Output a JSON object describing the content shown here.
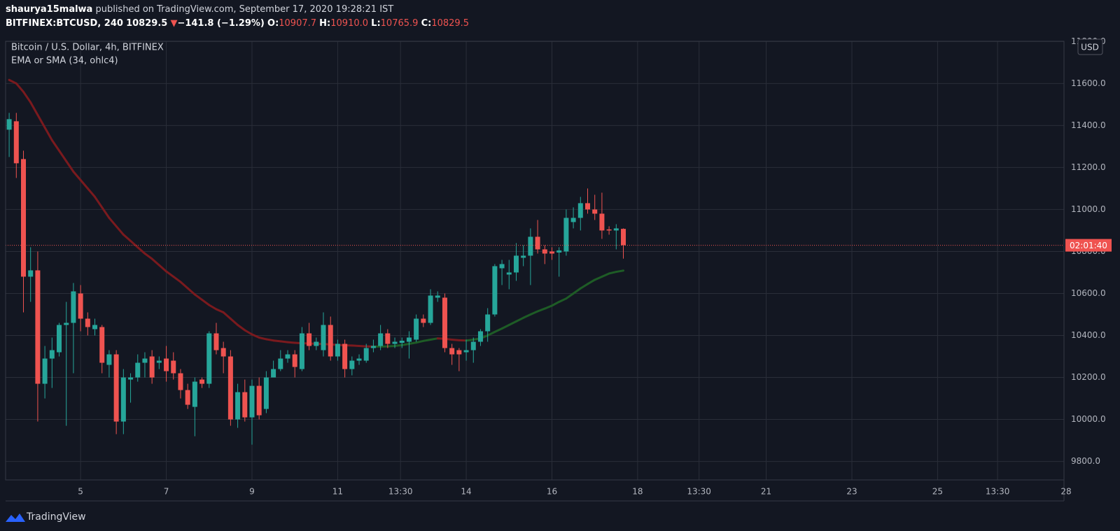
{
  "header": {
    "author": "shaurya15malwa",
    "published": "published on TradingView.com, September 17, 2020 19:28:21 IST",
    "symbol": "BITFINEX:BTCUSD, 240",
    "last": "10829.5",
    "arrow": "▼",
    "change": "−141.8 (−1.29%)",
    "o_label": "O:",
    "o_value": "10907.7",
    "h_label": "H:",
    "h_value": "10910.0",
    "l_label": "L:",
    "l_value": "10765.9",
    "c_label": "C:",
    "c_value": "10829.5"
  },
  "footer": {
    "brand": "TradingView"
  },
  "chart_data": {
    "type": "candlestick",
    "title": "Bitcoin / U.S. Dollar, 4h, BITFINEX",
    "indicator": "EMA or SMA (34, ohlc4)",
    "currency": "USD",
    "countdown": "02:01:40",
    "up_color": "#26a69a",
    "down_color": "#ef5350",
    "ma_up_color": "#1e5c26",
    "ma_down_color": "#7a1a1e",
    "grid": true,
    "xlim": [
      -0.5,
      147.7
    ],
    "xticks": [
      {
        "value": 10,
        "label": "5"
      },
      {
        "value": 22,
        "label": "7"
      },
      {
        "value": 34,
        "label": "9"
      },
      {
        "value": 46,
        "label": "11"
      },
      {
        "value": 54.8,
        "label": "13:30"
      },
      {
        "value": 64,
        "label": "14"
      },
      {
        "value": 76,
        "label": "16"
      },
      {
        "value": 88,
        "label": "18"
      },
      {
        "value": 96.6,
        "label": "13:30"
      },
      {
        "value": 106,
        "label": "21"
      },
      {
        "value": 118,
        "label": "23"
      },
      {
        "value": 130,
        "label": "25"
      },
      {
        "value": 138.4,
        "label": "13:30"
      },
      {
        "value": 148,
        "label": "28"
      }
    ],
    "ylim": [
      9712,
      11801
    ],
    "yticks": [
      {
        "value": 9800,
        "label": "9800.0"
      },
      {
        "value": 10000,
        "label": "10000.0"
      },
      {
        "value": 10200,
        "label": "10200.0"
      },
      {
        "value": 10400,
        "label": "10400.0"
      },
      {
        "value": 10600,
        "label": "10600.0"
      },
      {
        "value": 10800,
        "label": "10800.0"
      },
      {
        "value": 11000,
        "label": "11000.0"
      },
      {
        "value": 11200,
        "label": "11200.0"
      },
      {
        "value": 11400,
        "label": "11400.0"
      },
      {
        "value": 11600,
        "label": "11600.0"
      },
      {
        "value": 11800,
        "label": "11800.0"
      }
    ],
    "open": [
      11380,
      11420,
      11240,
      10680,
      10710,
      10170,
      10290,
      10320,
      10450,
      10460,
      10600,
      10480,
      10430,
      10440,
      10260,
      10310,
      9990,
      10190,
      10200,
      10270,
      10300,
      10270,
      10290,
      10280,
      10220,
      10140,
      10060,
      10190,
      10170,
      10410,
      10340,
      10300,
      10000,
      10130,
      10010,
      10160,
      10050,
      10200,
      10240,
      10290,
      10310,
      10240,
      10410,
      10350,
      10330,
      10450,
      10300,
      10360,
      10240,
      10280,
      10280,
      10340,
      10350,
      10410,
      10360,
      10365,
      10370,
      10380,
      10480,
      10460,
      10580,
      10580,
      10340,
      10330,
      10320,
      10330,
      10370,
      10420,
      10500,
      10720,
      10690,
      10700,
      10770,
      10780,
      10870,
      10810,
      10800,
      10795,
      10800,
      10940,
      10960,
      11030,
      11000,
      10980,
      10905,
      10900,
      10907.7
    ],
    "high": [
      11460,
      11460,
      11280,
      10820,
      10800,
      10350,
      10390,
      10460,
      10560,
      10650,
      10640,
      10510,
      10480,
      10450,
      10330,
      10330,
      10240,
      10220,
      10310,
      10320,
      10330,
      10300,
      10350,
      10320,
      10240,
      10170,
      10200,
      10200,
      10420,
      10460,
      10370,
      10330,
      10170,
      10190,
      10190,
      10200,
      10230,
      10280,
      10330,
      10330,
      10330,
      10440,
      10460,
      10390,
      10510,
      10490,
      10380,
      10380,
      10300,
      10310,
      10360,
      10380,
      10450,
      10430,
      10390,
      10390,
      10420,
      10500,
      10500,
      10620,
      10610,
      10600,
      10360,
      10340,
      10380,
      10390,
      10430,
      10530,
      10740,
      10760,
      10760,
      10840,
      10830,
      10910,
      10950,
      10830,
      10820,
      10820,
      11000,
      11010,
      11060,
      11100,
      11070,
      11080,
      10920,
      10930,
      10910
    ],
    "low": [
      11250,
      11150,
      10510,
      10560,
      9990,
      10100,
      10150,
      10300,
      9970,
      10220,
      10420,
      10400,
      10400,
      10220,
      10200,
      9930,
      9930,
      10080,
      10180,
      10200,
      10170,
      10240,
      10180,
      10190,
      10100,
      10050,
      9920,
      10150,
      10150,
      10310,
      10220,
      9970,
      9960,
      9990,
      9880,
      10000,
      10030,
      10200,
      10230,
      10270,
      10200,
      10230,
      10330,
      10330,
      10300,
      10280,
      10280,
      10200,
      10210,
      10260,
      10270,
      10320,
      10330,
      10340,
      10340,
      10340,
      10290,
      10370,
      10440,
      10450,
      10560,
      10320,
      10260,
      10230,
      10280,
      10270,
      10350,
      10370,
      10490,
      10640,
      10620,
      10660,
      10730,
      10640,
      10790,
      10740,
      10760,
      10680,
      10780,
      10910,
      10900,
      10980,
      10950,
      10860,
      10880,
      10810,
      10765.9
    ],
    "close": [
      11430,
      11220,
      10680,
      10710,
      10170,
      10290,
      10330,
      10450,
      10460,
      10610,
      10480,
      10440,
      10450,
      10270,
      10310,
      9990,
      10200,
      10200,
      10270,
      10290,
      10200,
      10280,
      10230,
      10220,
      10140,
      10070,
      10180,
      10170,
      10410,
      10330,
      10300,
      10000,
      10130,
      10010,
      10160,
      10020,
      10200,
      10240,
      10290,
      10310,
      10250,
      10410,
      10350,
      10370,
      10450,
      10300,
      10360,
      10240,
      10280,
      10290,
      10340,
      10350,
      10410,
      10360,
      10370,
      10375,
      10390,
      10480,
      10460,
      10590,
      10590,
      10340,
      10310,
      10310,
      10330,
      10370,
      10420,
      10500,
      10730,
      10740,
      10700,
      10780,
      10780,
      10870,
      10810,
      10790,
      10790,
      10805,
      10960,
      10960,
      11030,
      11000,
      10980,
      10900,
      10900,
      10910,
      10829.5
    ],
    "ma": [
      11617,
      11600,
      11560,
      11510,
      11450,
      11390,
      11330,
      11280,
      11230,
      11180,
      11140,
      11100,
      11060,
      11010,
      10960,
      10920,
      10880,
      10850,
      10820,
      10790,
      10765,
      10735,
      10705,
      10680,
      10655,
      10625,
      10595,
      10570,
      10545,
      10525,
      10510,
      10480,
      10450,
      10425,
      10405,
      10390,
      10382,
      10376,
      10372,
      10368,
      10365,
      10363,
      10362,
      10360,
      10359,
      10357,
      10355,
      10353,
      10352,
      10350,
      10348,
      10347,
      10347,
      10348,
      10350,
      10354,
      10360,
      10366,
      10374,
      10380,
      10386,
      10384,
      10380,
      10377,
      10376,
      10380,
      10386,
      10400,
      10417,
      10433,
      10450,
      10467,
      10484,
      10500,
      10515,
      10528,
      10542,
      10560,
      10576,
      10600,
      10624,
      10645,
      10665,
      10680,
      10695,
      10703,
      10709
    ]
  }
}
